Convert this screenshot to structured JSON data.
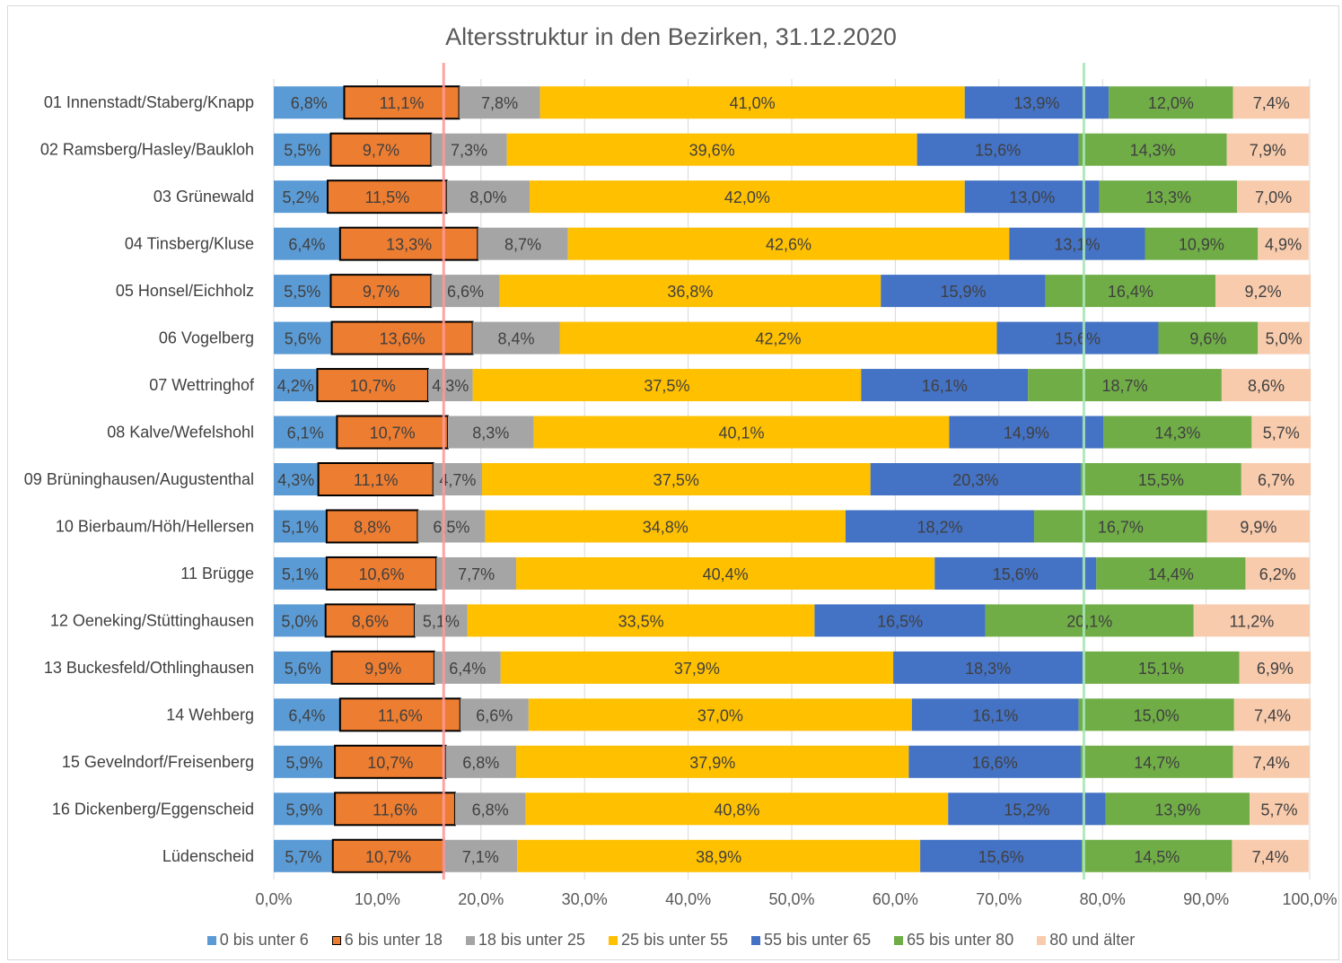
{
  "chart_data": {
    "type": "bar",
    "orientation": "horizontal",
    "stacked": "percent",
    "title": "Altersstruktur in den Bezirken, 31.12.2020",
    "xlabel": "",
    "ylabel": "",
    "xlim": [
      0,
      100
    ],
    "x_ticks": [
      "0,0%",
      "10,0%",
      "20,0%",
      "30,0%",
      "40,0%",
      "50,0%",
      "60,0%",
      "70,0%",
      "80,0%",
      "90,0%",
      "100,0%"
    ],
    "grid": true,
    "legend_position": "bottom",
    "categories": [
      "01 Innenstadt/Staberg/Knapp",
      "02 Ramsberg/Hasley/Baukloh",
      "03 Grünewald",
      "04 Tinsberg/Kluse",
      "05 Honsel/Eichholz",
      "06 Vogelberg",
      "07 Wettringhof",
      "08 Kalve/Wefelshohl",
      "09 Brüninghausen/Augustenthal",
      "10 Bierbaum/Höh/Hellersen",
      "11 Brügge",
      "12 Oeneking/Stüttinghausen",
      "13 Buckesfeld/Othlinghausen",
      "14 Wehberg",
      "15 Gevelndorf/Freisenberg",
      "16 Dickenberg/Eggenscheid",
      "Lüdenscheid"
    ],
    "series": [
      {
        "name": "0 bis unter 6",
        "color": "#5b9bd5",
        "values": [
          6.8,
          5.5,
          5.2,
          6.4,
          5.5,
          5.6,
          4.2,
          6.1,
          4.3,
          5.1,
          5.1,
          5.0,
          5.6,
          6.4,
          5.9,
          5.9,
          5.7
        ]
      },
      {
        "name": "6 bis unter 18",
        "color": "#ed7d31",
        "outlined": true,
        "values": [
          11.1,
          9.7,
          11.5,
          13.3,
          9.7,
          13.6,
          10.7,
          10.7,
          11.1,
          8.8,
          10.6,
          8.6,
          9.9,
          11.6,
          10.7,
          11.6,
          10.7
        ]
      },
      {
        "name": "18 bis unter 25",
        "color": "#a5a5a5",
        "values": [
          7.8,
          7.3,
          8.0,
          8.7,
          6.6,
          8.4,
          4.3,
          8.3,
          4.7,
          6.5,
          7.7,
          5.1,
          6.4,
          6.6,
          6.8,
          6.8,
          7.1
        ]
      },
      {
        "name": "25 bis unter 55",
        "color": "#ffc000",
        "values": [
          41.0,
          39.6,
          42.0,
          42.6,
          36.8,
          42.2,
          37.5,
          40.1,
          37.5,
          34.8,
          40.4,
          33.5,
          37.9,
          37.0,
          37.9,
          40.8,
          38.9
        ]
      },
      {
        "name": "55 bis unter 65",
        "color": "#4472c4",
        "values": [
          13.9,
          15.6,
          13.0,
          13.1,
          15.9,
          15.6,
          16.1,
          14.9,
          20.3,
          18.2,
          15.6,
          16.5,
          18.3,
          16.1,
          16.6,
          15.2,
          15.6
        ]
      },
      {
        "name": "65 bis unter 80",
        "color": "#70ad47",
        "values": [
          12.0,
          14.3,
          13.3,
          10.9,
          16.4,
          9.6,
          18.7,
          14.3,
          15.5,
          16.7,
          14.4,
          20.1,
          15.1,
          15.0,
          14.7,
          13.9,
          14.5
        ]
      },
      {
        "name": "80 und älter",
        "color": "#f8cbad",
        "values": [
          7.4,
          7.9,
          7.0,
          4.9,
          9.2,
          5.0,
          8.6,
          5.7,
          6.7,
          9.9,
          6.2,
          11.2,
          6.9,
          7.4,
          7.4,
          5.7,
          7.4
        ]
      }
    ],
    "data_labels": [
      [
        "6,8%",
        "11,1%",
        "7,8%",
        "41,0%",
        "13,9%",
        "12,0%",
        "7,4%"
      ],
      [
        "5,5%",
        "9,7%",
        "7,3%",
        "39,6%",
        "15,6%",
        "14,3%",
        "7,9%"
      ],
      [
        "5,2%",
        "11,5%",
        "8,0%",
        "42,0%",
        "13,0%",
        "13,3%",
        "7,0%"
      ],
      [
        "6,4%",
        "13,3%",
        "8,7%",
        "42,6%",
        "13,1%",
        "10,9%",
        "4,9%"
      ],
      [
        "5,5%",
        "9,7%",
        "6,6%",
        "36,8%",
        "15,9%",
        "16,4%",
        "9,2%"
      ],
      [
        "5,6%",
        "13,6%",
        "8,4%",
        "42,2%",
        "15,6%",
        "9,6%",
        "5,0%"
      ],
      [
        "4,2%",
        "10,7%",
        "4,3%",
        "37,5%",
        "16,1%",
        "18,7%",
        "8,6%"
      ],
      [
        "6,1%",
        "10,7%",
        "8,3%",
        "40,1%",
        "14,9%",
        "14,3%",
        "5,7%"
      ],
      [
        "4,3%",
        "11,1%",
        "4,7%",
        "37,5%",
        "20,3%",
        "15,5%",
        "6,7%"
      ],
      [
        "5,1%",
        "8,8%",
        "6,5%",
        "34,8%",
        "18,2%",
        "16,7%",
        "9,9%"
      ],
      [
        "5,1%",
        "10,6%",
        "7,7%",
        "40,4%",
        "15,6%",
        "14,4%",
        "6,2%"
      ],
      [
        "5,0%",
        "8,6%",
        "5,1%",
        "33,5%",
        "16,5%",
        "20,1%",
        "11,2%"
      ],
      [
        "5,6%",
        "9,9%",
        "6,4%",
        "37,9%",
        "18,3%",
        "15,1%",
        "6,9%"
      ],
      [
        "6,4%",
        "11,6%",
        "6,6%",
        "37,0%",
        "16,1%",
        "15,0%",
        "7,4%"
      ],
      [
        "5,9%",
        "10,7%",
        "6,8%",
        "37,9%",
        "16,6%",
        "14,7%",
        "7,4%"
      ],
      [
        "5,9%",
        "11,6%",
        "6,8%",
        "40,8%",
        "15,2%",
        "13,9%",
        "5,7%"
      ],
      [
        "5,7%",
        "10,7%",
        "7,1%",
        "38,9%",
        "15,6%",
        "14,5%",
        "7,4%"
      ]
    ],
    "reference_lines": [
      {
        "x": 16.4,
        "color": "#ff9999"
      },
      {
        "x": 78.2,
        "color": "#a8e6b8"
      }
    ]
  }
}
